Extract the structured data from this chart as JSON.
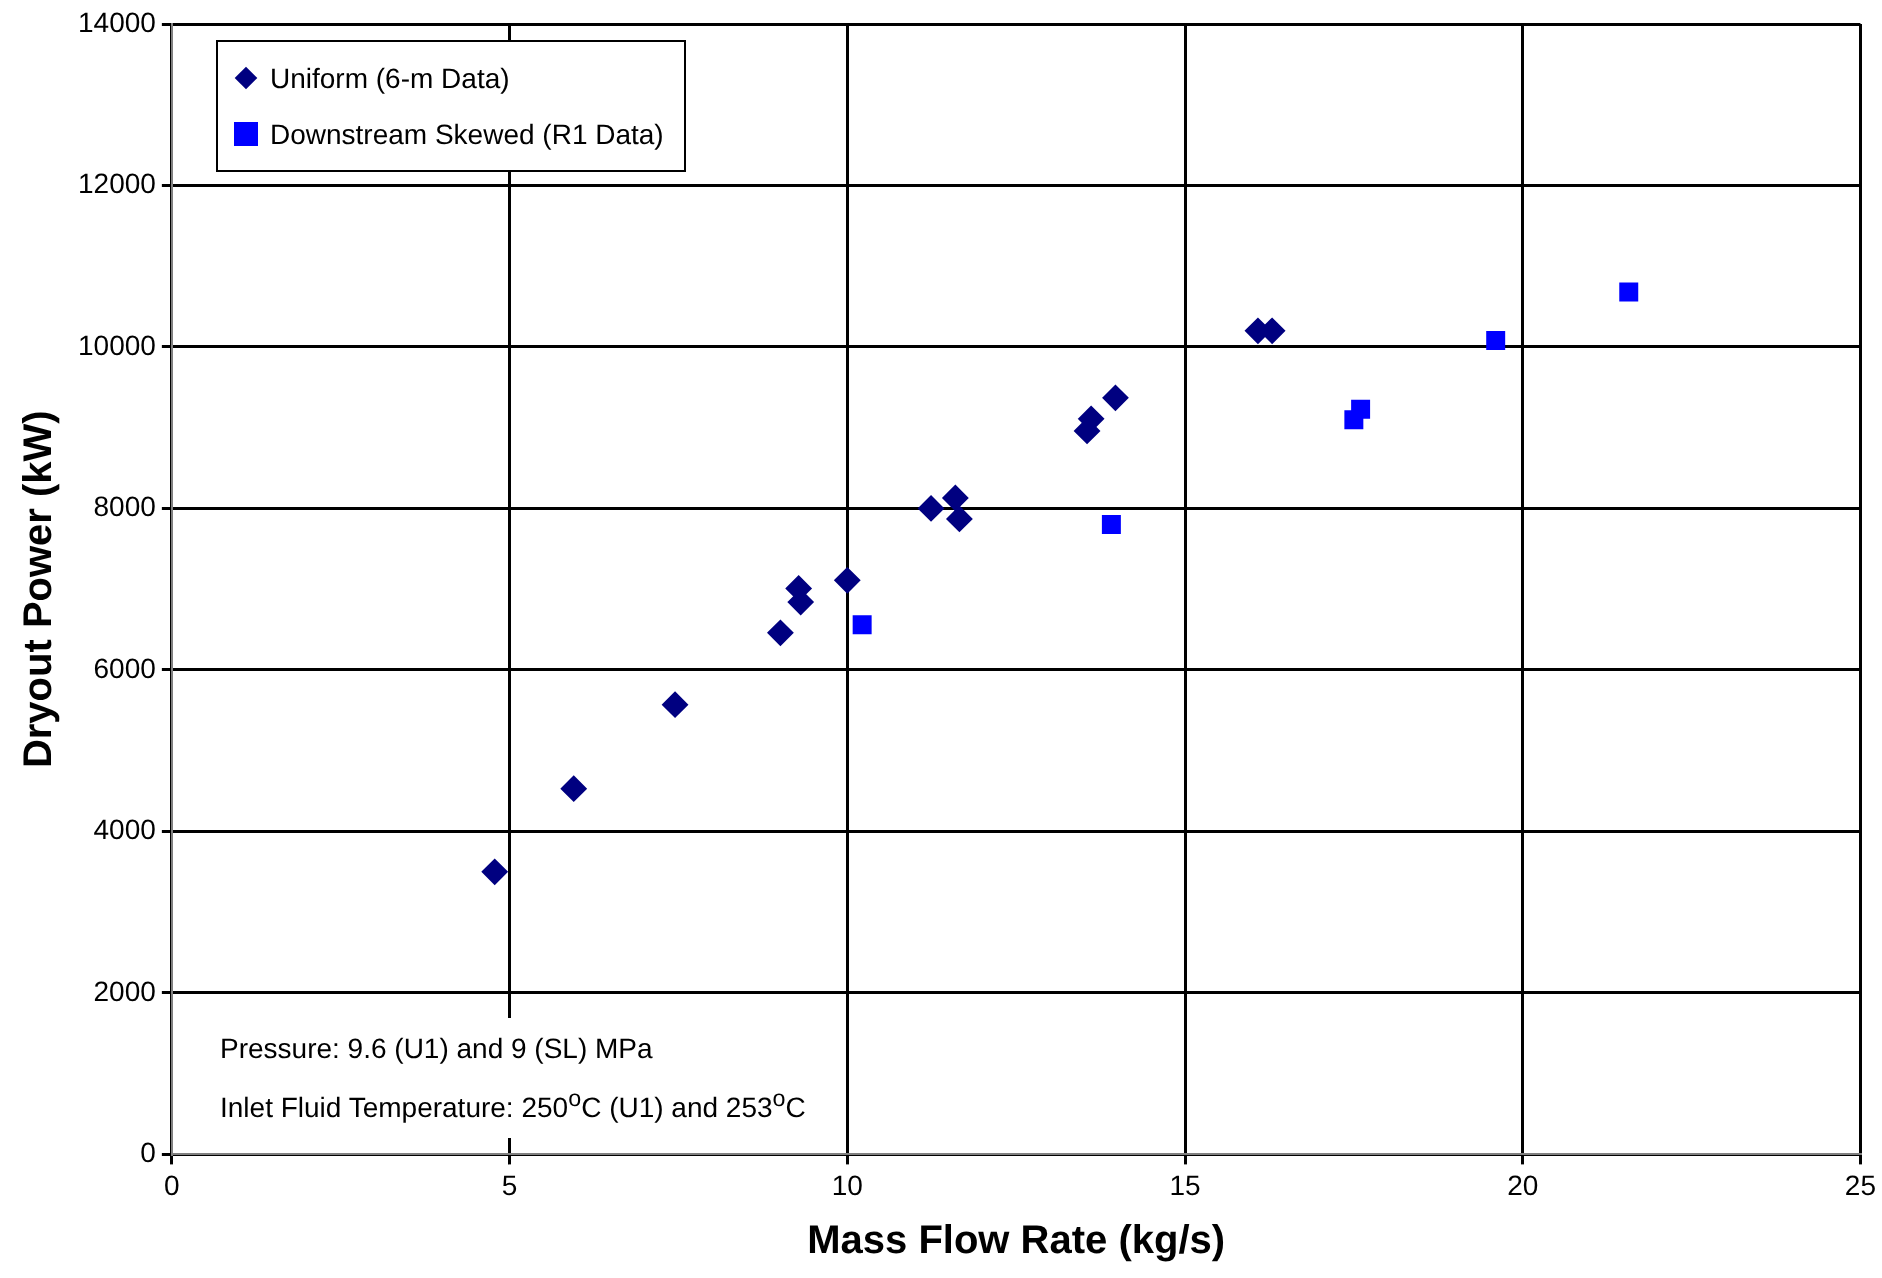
{
  "chart_data": {
    "type": "scatter",
    "xlabel": "Mass Flow Rate (kg/s)",
    "ylabel": "Dryout Power (kW)",
    "xlim": [
      0,
      25
    ],
    "xticks": [
      0,
      5,
      10,
      15,
      20,
      25
    ],
    "ylim": [
      0,
      14000
    ],
    "yticks": [
      0,
      2000,
      4000,
      6000,
      8000,
      10000,
      12000,
      14000
    ],
    "grid": true,
    "legend": "top left",
    "series": [
      {
        "name": "Uniform (6-m Data)",
        "color": "#000080",
        "marker": "diamond",
        "x": [
          4.78,
          5.95,
          7.45,
          9.01,
          9.28,
          9.31,
          10.0,
          11.24,
          11.6,
          11.66,
          13.55,
          13.61,
          13.97,
          16.08,
          16.29
        ],
        "values": [
          3500,
          4530,
          5570,
          6460,
          7010,
          6840,
          7110,
          8000,
          8130,
          7870,
          8960,
          9110,
          9370,
          10200,
          10200
        ]
      },
      {
        "name": "Downstream Skewed (R1 Data)",
        "color": "#0000ff",
        "marker": "square",
        "x": [
          10.22,
          13.91,
          17.6,
          17.5,
          19.6,
          21.57
        ],
        "values": [
          6560,
          7800,
          9230,
          9100,
          10080,
          10680
        ]
      }
    ],
    "annotations": [
      "Pressure: 9.6 (U1) and 9 (SL) MPa",
      "Inlet Fluid Temperature: 250$^{o}$C (U1) and 253$^{o}$C"
    ]
  }
}
